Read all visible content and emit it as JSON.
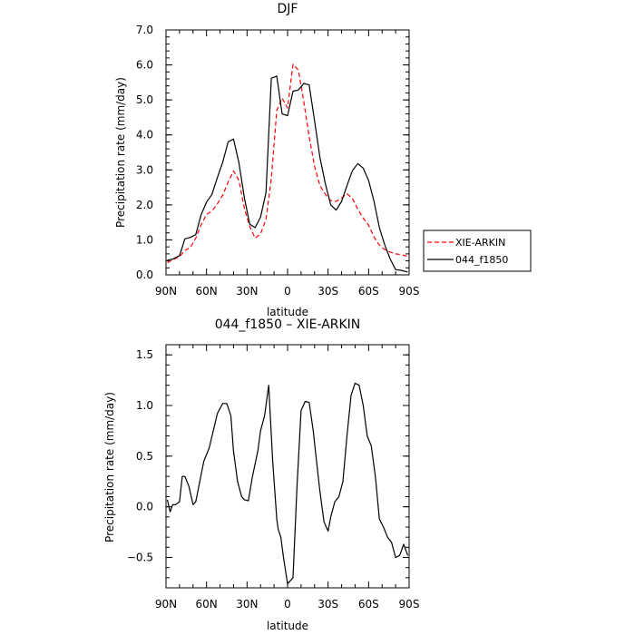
{
  "chart_data": [
    {
      "type": "line",
      "title": "DJF",
      "xlabel": "latitude",
      "ylabel": "Precipitation rate (mm/day)",
      "xlim": [
        90,
        -90
      ],
      "ylim": [
        0,
        7
      ],
      "x_ticks": [
        90,
        60,
        30,
        0,
        -30,
        -60,
        -90
      ],
      "x_tick_labels": [
        "90N",
        "60N",
        "30N",
        "0",
        "30S",
        "60S",
        "90S"
      ],
      "y_ticks": [
        0,
        1,
        2,
        3,
        4,
        5,
        6,
        7
      ],
      "y_tick_labels": [
        "0.0",
        "1.0",
        "2.0",
        "3.0",
        "4.0",
        "5.0",
        "6.0",
        "7.0"
      ],
      "legend_position": "right",
      "series": [
        {
          "name": "XIE-ARKIN",
          "color": "#ff0000",
          "dash": "dashed",
          "x": [
            89,
            85,
            80,
            76,
            72,
            68,
            64,
            60,
            56,
            52,
            48,
            44,
            40,
            36,
            32,
            28,
            24,
            20,
            16,
            12,
            8,
            4,
            0,
            -4,
            -8,
            -12,
            -16,
            -20,
            -24,
            -28,
            -32,
            -36,
            -40,
            -44,
            -48,
            -52,
            -56,
            -60,
            -64,
            -68,
            -72,
            -76,
            -80,
            -84,
            -89
          ],
          "y": [
            0.35,
            0.43,
            0.52,
            0.7,
            0.78,
            1.05,
            1.43,
            1.73,
            1.82,
            2.03,
            2.28,
            2.65,
            2.97,
            2.7,
            1.9,
            1.38,
            1.05,
            1.17,
            1.58,
            2.75,
            4.7,
            5.05,
            4.77,
            6.02,
            5.85,
            4.95,
            3.95,
            3.1,
            2.55,
            2.3,
            2.12,
            2.1,
            2.2,
            2.32,
            2.18,
            1.88,
            1.62,
            1.42,
            1.08,
            0.85,
            0.72,
            0.65,
            0.6,
            0.58,
            0.53
          ]
        },
        {
          "name": "044_f1850",
          "color": "#000000",
          "dash": "solid",
          "x": [
            89,
            85,
            80,
            76,
            72,
            68,
            64,
            60,
            56,
            52,
            48,
            44,
            40,
            36,
            32,
            28,
            24,
            20,
            16,
            12,
            8,
            4,
            0,
            -4,
            -8,
            -12,
            -16,
            -20,
            -24,
            -28,
            -32,
            -36,
            -40,
            -44,
            -48,
            -52,
            -56,
            -60,
            -64,
            -68,
            -72,
            -76,
            -80,
            -84,
            -89
          ],
          "y": [
            0.42,
            0.45,
            0.55,
            1.03,
            1.07,
            1.15,
            1.72,
            2.08,
            2.3,
            2.78,
            3.22,
            3.8,
            3.88,
            3.2,
            2.2,
            1.45,
            1.35,
            1.65,
            2.35,
            5.62,
            5.68,
            4.6,
            4.55,
            5.25,
            5.28,
            5.47,
            5.43,
            4.4,
            3.35,
            2.6,
            2.0,
            1.85,
            2.1,
            2.55,
            2.98,
            3.18,
            3.05,
            2.7,
            2.1,
            1.35,
            0.85,
            0.45,
            0.15,
            0.13,
            0.08
          ]
        }
      ]
    },
    {
      "type": "line",
      "title": "044_f1850 – XIE-ARKIN",
      "xlabel": "latitude",
      "ylabel": "Precipitation rate (mm/day)",
      "xlim": [
        90,
        -90
      ],
      "ylim": [
        -0.8,
        1.6
      ],
      "x_ticks": [
        90,
        60,
        30,
        0,
        -30,
        -60,
        -90
      ],
      "x_tick_labels": [
        "90N",
        "60N",
        "30N",
        "0",
        "30S",
        "60S",
        "90S"
      ],
      "y_ticks": [
        -0.5,
        0,
        0.5,
        1,
        1.5
      ],
      "y_tick_labels": [
        "−0.5",
        "0.0",
        "0.5",
        "1.0",
        "1.5"
      ],
      "series": [
        {
          "color": "#000000",
          "dash": "solid",
          "x": [
            89,
            87,
            85,
            83,
            80,
            78,
            76,
            73,
            70,
            68,
            65,
            62,
            58,
            55,
            52,
            48,
            45,
            42,
            40,
            37,
            34,
            32,
            29,
            26,
            22,
            20,
            17,
            14,
            11,
            8,
            7,
            5,
            3,
            0,
            -2,
            -4,
            -7,
            -10,
            -13,
            -16,
            -19,
            -21,
            -24,
            -27,
            -30,
            -32,
            -35,
            -38,
            -41,
            -44,
            -47,
            -50,
            -53,
            -56,
            -59,
            -62,
            -65,
            -68,
            -71,
            -74,
            -77,
            -80,
            -83,
            -86,
            -89
          ],
          "y": [
            0.07,
            -0.05,
            0.02,
            0.02,
            0.05,
            0.3,
            0.3,
            0.2,
            0.02,
            0.05,
            0.25,
            0.45,
            0.58,
            0.75,
            0.92,
            1.02,
            1.02,
            0.9,
            0.55,
            0.25,
            0.1,
            0.07,
            0.06,
            0.3,
            0.55,
            0.75,
            0.9,
            1.2,
            0.45,
            -0.12,
            -0.22,
            -0.3,
            -0.5,
            -0.76,
            -0.73,
            -0.7,
            0.2,
            0.95,
            1.04,
            1.03,
            0.75,
            0.5,
            0.15,
            -0.15,
            -0.24,
            -0.1,
            0.05,
            0.1,
            0.25,
            0.7,
            1.1,
            1.22,
            1.2,
            1.0,
            0.7,
            0.6,
            0.3,
            -0.12,
            -0.2,
            -0.3,
            -0.35,
            -0.5,
            -0.48,
            -0.37,
            -0.48
          ]
        }
      ]
    }
  ]
}
